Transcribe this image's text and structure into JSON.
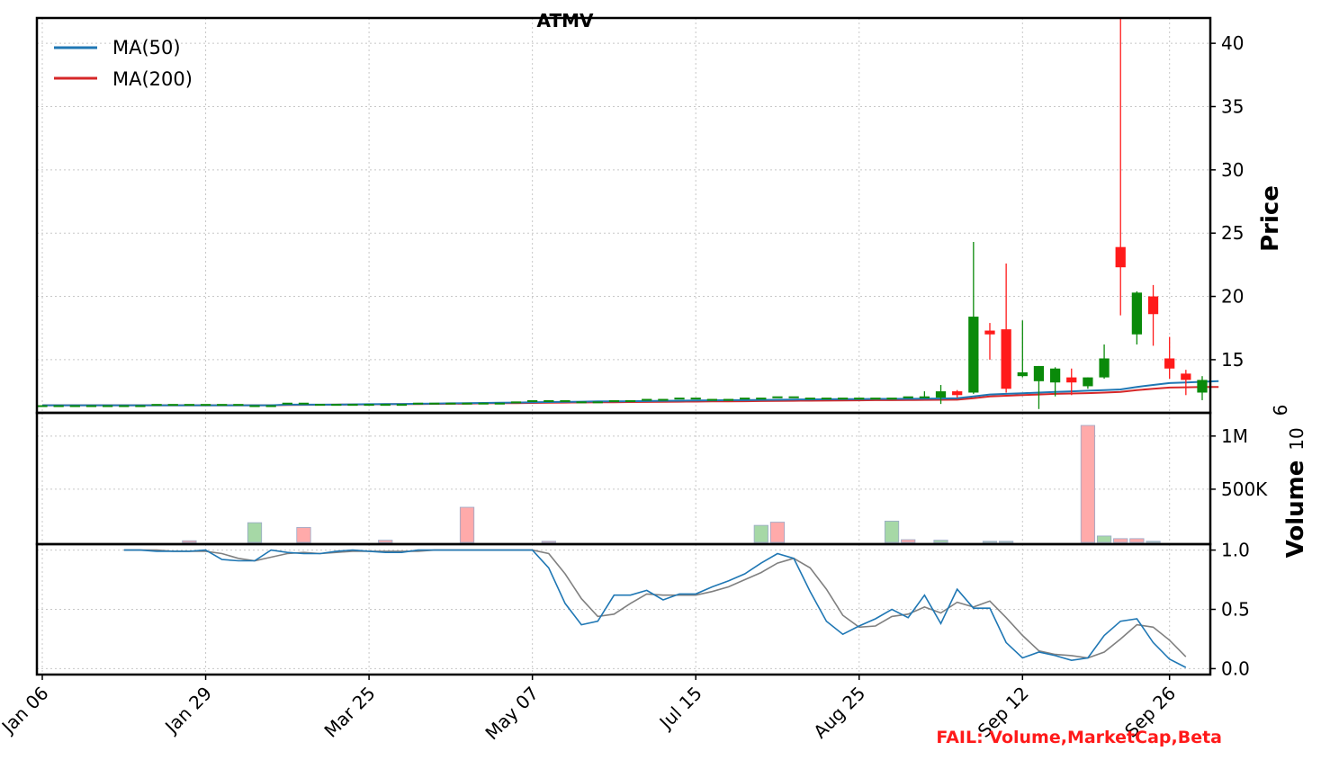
{
  "chart_data": {
    "type": "candlestick",
    "title": "ATMV",
    "status": {
      "text": "FAIL: Volume,MarketCap,Beta",
      "color": "#ff1a1a"
    },
    "colors": {
      "up": "#0a8a0a",
      "down": "#ff1a1a",
      "ma50": "#1f77b4",
      "ma200": "#d62728",
      "line1": "#1f77b4",
      "line2": "#808080",
      "vol_up": "#a6d8a6",
      "vol_down": "#ffaaaa",
      "grid": "#c8c8c8"
    },
    "x_tick_labels": [
      "Jan 06",
      "Jan 29",
      "Mar 25",
      "May 07",
      "Jul 15",
      "Aug 25",
      "Sep 12",
      "Sep 26"
    ],
    "legend": [
      {
        "label": "MA(50)",
        "color": "#1f77b4"
      },
      {
        "label": "MA(200)",
        "color": "#d62728"
      }
    ],
    "price_panel": {
      "ylabel": "Price",
      "ylim": [
        10.8,
        42
      ],
      "yticks": [
        15,
        20,
        25,
        30,
        35,
        40
      ],
      "candles": [
        {
          "o": 11.4,
          "h": 11.4,
          "l": 11.4,
          "c": 11.4
        },
        {
          "o": 11.4,
          "h": 11.4,
          "l": 11.4,
          "c": 11.4
        },
        {
          "o": 11.4,
          "h": 11.4,
          "l": 11.4,
          "c": 11.4
        },
        {
          "o": 11.4,
          "h": 11.4,
          "l": 11.4,
          "c": 11.4
        },
        {
          "o": 11.4,
          "h": 11.4,
          "l": 11.4,
          "c": 11.4
        },
        {
          "o": 11.4,
          "h": 11.4,
          "l": 11.4,
          "c": 11.4
        },
        {
          "o": 11.4,
          "h": 11.4,
          "l": 11.4,
          "c": 11.4
        },
        {
          "o": 11.5,
          "h": 11.5,
          "l": 11.5,
          "c": 11.5
        },
        {
          "o": 11.5,
          "h": 11.5,
          "l": 11.5,
          "c": 11.5
        },
        {
          "o": 11.5,
          "h": 11.5,
          "l": 11.5,
          "c": 11.5
        },
        {
          "o": 11.5,
          "h": 11.5,
          "l": 11.5,
          "c": 11.5
        },
        {
          "o": 11.5,
          "h": 11.5,
          "l": 11.5,
          "c": 11.5
        },
        {
          "o": 11.5,
          "h": 11.5,
          "l": 11.5,
          "c": 11.5
        },
        {
          "o": 11.4,
          "h": 11.4,
          "l": 11.4,
          "c": 11.4
        },
        {
          "o": 11.4,
          "h": 11.4,
          "l": 11.4,
          "c": 11.4
        },
        {
          "o": 11.6,
          "h": 11.6,
          "l": 11.6,
          "c": 11.6
        },
        {
          "o": 11.6,
          "h": 11.6,
          "l": 11.6,
          "c": 11.6
        },
        {
          "o": 11.5,
          "h": 11.5,
          "l": 11.5,
          "c": 11.5
        },
        {
          "o": 11.5,
          "h": 11.5,
          "l": 11.5,
          "c": 11.5
        },
        {
          "o": 11.5,
          "h": 11.5,
          "l": 11.5,
          "c": 11.5
        },
        {
          "o": 11.5,
          "h": 11.5,
          "l": 11.5,
          "c": 11.5
        },
        {
          "o": 11.5,
          "h": 11.5,
          "l": 11.5,
          "c": 11.5
        },
        {
          "o": 11.5,
          "h": 11.5,
          "l": 11.5,
          "c": 11.5
        },
        {
          "o": 11.6,
          "h": 11.6,
          "l": 11.6,
          "c": 11.6
        },
        {
          "o": 11.6,
          "h": 11.6,
          "l": 11.6,
          "c": 11.6
        },
        {
          "o": 11.6,
          "h": 11.6,
          "l": 11.6,
          "c": 11.6
        },
        {
          "o": 11.6,
          "h": 11.6,
          "l": 11.6,
          "c": 11.6
        },
        {
          "o": 11.6,
          "h": 11.6,
          "l": 11.6,
          "c": 11.6
        },
        {
          "o": 11.6,
          "h": 11.6,
          "l": 11.6,
          "c": 11.6
        },
        {
          "o": 11.7,
          "h": 11.7,
          "l": 11.7,
          "c": 11.7
        },
        {
          "o": 11.8,
          "h": 11.8,
          "l": 11.8,
          "c": 11.8
        },
        {
          "o": 11.8,
          "h": 11.8,
          "l": 11.8,
          "c": 11.8
        },
        {
          "o": 11.8,
          "h": 11.8,
          "l": 11.8,
          "c": 11.8
        },
        {
          "o": 11.7,
          "h": 11.7,
          "l": 11.7,
          "c": 11.7
        },
        {
          "o": 11.7,
          "h": 11.7,
          "l": 11.7,
          "c": 11.7
        },
        {
          "o": 11.8,
          "h": 11.8,
          "l": 11.8,
          "c": 11.8
        },
        {
          "o": 11.8,
          "h": 11.8,
          "l": 11.8,
          "c": 11.8
        },
        {
          "o": 11.9,
          "h": 11.9,
          "l": 11.9,
          "c": 11.9
        },
        {
          "o": 11.9,
          "h": 11.9,
          "l": 11.9,
          "c": 11.9
        },
        {
          "o": 12.0,
          "h": 12.0,
          "l": 12.0,
          "c": 12.0
        },
        {
          "o": 12.0,
          "h": 12.0,
          "l": 12.0,
          "c": 12.0
        },
        {
          "o": 11.9,
          "h": 11.9,
          "l": 11.9,
          "c": 11.9
        },
        {
          "o": 11.9,
          "h": 11.9,
          "l": 11.9,
          "c": 11.9
        },
        {
          "o": 12.0,
          "h": 12.0,
          "l": 12.0,
          "c": 12.0
        },
        {
          "o": 12.0,
          "h": 12.0,
          "l": 12.0,
          "c": 12.0
        },
        {
          "o": 12.1,
          "h": 12.1,
          "l": 12.1,
          "c": 12.1
        },
        {
          "o": 12.1,
          "h": 12.1,
          "l": 12.1,
          "c": 12.1
        },
        {
          "o": 12.0,
          "h": 12.0,
          "l": 12.0,
          "c": 12.0
        },
        {
          "o": 12.0,
          "h": 12.0,
          "l": 12.0,
          "c": 12.0
        },
        {
          "o": 12.0,
          "h": 12.0,
          "l": 12.0,
          "c": 12.0
        },
        {
          "o": 12.0,
          "h": 12.0,
          "l": 12.0,
          "c": 12.0
        },
        {
          "o": 12.0,
          "h": 12.0,
          "l": 12.0,
          "c": 12.0
        },
        {
          "o": 12.0,
          "h": 12.0,
          "l": 12.0,
          "c": 12.0
        },
        {
          "o": 12.1,
          "h": 12.1,
          "l": 12.1,
          "c": 12.1
        },
        {
          "o": 12.0,
          "h": 12.5,
          "l": 12.0,
          "c": 12.1
        },
        {
          "o": 12.0,
          "h": 13.0,
          "l": 11.5,
          "c": 12.5
        },
        {
          "o": 12.5,
          "h": 12.6,
          "l": 12.0,
          "c": 12.2
        },
        {
          "o": 12.4,
          "h": 24.3,
          "l": 12.3,
          "c": 18.4
        },
        {
          "o": 17.3,
          "h": 17.9,
          "l": 15.0,
          "c": 17.0
        },
        {
          "o": 17.4,
          "h": 22.6,
          "l": 12.4,
          "c": 12.7
        },
        {
          "o": 13.7,
          "h": 18.1,
          "l": 13.6,
          "c": 14.0
        },
        {
          "o": 13.3,
          "h": 14.5,
          "l": 11.1,
          "c": 14.5
        },
        {
          "o": 13.2,
          "h": 14.4,
          "l": 12.1,
          "c": 14.3
        },
        {
          "o": 13.6,
          "h": 14.3,
          "l": 12.2,
          "c": 13.2
        },
        {
          "o": 12.9,
          "h": 13.6,
          "l": 12.7,
          "c": 13.6
        },
        {
          "o": 13.6,
          "h": 16.2,
          "l": 13.5,
          "c": 15.1
        },
        {
          "o": 23.9,
          "h": 42.0,
          "l": 18.5,
          "c": 22.3
        },
        {
          "o": 17.0,
          "h": 20.4,
          "l": 16.2,
          "c": 20.3
        },
        {
          "o": 20.0,
          "h": 20.9,
          "l": 16.1,
          "c": 18.6
        },
        {
          "o": 15.1,
          "h": 16.8,
          "l": 13.5,
          "c": 14.3
        },
        {
          "o": 13.9,
          "h": 14.2,
          "l": 12.2,
          "c": 13.4
        },
        {
          "o": 12.4,
          "h": 13.7,
          "l": 11.8,
          "c": 13.4
        }
      ],
      "ma50": [
        11.4,
        11.4,
        11.4,
        11.4,
        11.4,
        11.4,
        11.4,
        11.4,
        11.4,
        11.4,
        11.4,
        11.4,
        11.4,
        11.4,
        11.4,
        11.45,
        11.45,
        11.45,
        11.45,
        11.47,
        11.48,
        11.5,
        11.5,
        11.52,
        11.53,
        11.55,
        11.56,
        11.58,
        11.6,
        11.61,
        11.63,
        11.65,
        11.67,
        11.68,
        11.7,
        11.7,
        11.72,
        11.73,
        11.75,
        11.76,
        11.78,
        11.79,
        11.8,
        11.8,
        11.82,
        11.83,
        11.85,
        11.86,
        11.87,
        11.88,
        11.89,
        11.9,
        11.9,
        11.91,
        11.92,
        11.93,
        11.95,
        12.1,
        12.25,
        12.3,
        12.35,
        12.4,
        12.45,
        12.5,
        12.55,
        12.6,
        12.65,
        12.85,
        13.0,
        13.15,
        13.2,
        13.25,
        13.3
      ],
      "ma200": [
        11.4,
        11.4,
        11.4,
        11.4,
        11.4,
        11.4,
        11.4,
        11.4,
        11.4,
        11.4,
        11.4,
        11.4,
        11.4,
        11.4,
        11.4,
        11.42,
        11.43,
        11.44,
        11.45,
        11.46,
        11.47,
        11.48,
        11.49,
        11.5,
        11.51,
        11.52,
        11.53,
        11.55,
        11.56,
        11.57,
        11.58,
        11.6,
        11.61,
        11.62,
        11.63,
        11.64,
        11.65,
        11.66,
        11.67,
        11.68,
        11.69,
        11.7,
        11.71,
        11.72,
        11.73,
        11.74,
        11.75,
        11.76,
        11.77,
        11.78,
        11.79,
        11.8,
        11.8,
        11.81,
        11.82,
        11.83,
        11.84,
        11.95,
        12.1,
        12.15,
        12.2,
        12.25,
        12.3,
        12.33,
        12.36,
        12.4,
        12.45,
        12.6,
        12.7,
        12.8,
        12.82,
        12.84,
        12.85
      ]
    },
    "volume_panel": {
      "ylabel": "Volume",
      "multiplier": "10",
      "multiplier_exp": "6",
      "ytick_labels": [
        "500K",
        "1M"
      ],
      "yticks": [
        500000,
        1000000
      ],
      "ylim": [
        0,
        1100000
      ],
      "bars": [
        {
          "i": 9,
          "v": 15000,
          "up": false
        },
        {
          "i": 13,
          "v": 185000,
          "up": true
        },
        {
          "i": 16,
          "v": 140000,
          "up": false
        },
        {
          "i": 21,
          "v": 20000,
          "up": false
        },
        {
          "i": 26,
          "v": 330000,
          "up": false
        },
        {
          "i": 31,
          "v": 10000,
          "up": false
        },
        {
          "i": 44,
          "v": 160000,
          "up": true
        },
        {
          "i": 45,
          "v": 190000,
          "up": false
        },
        {
          "i": 52,
          "v": 200000,
          "up": true
        },
        {
          "i": 53,
          "v": 25000,
          "up": false
        },
        {
          "i": 55,
          "v": 20000,
          "up": true
        },
        {
          "i": 58,
          "v": 10000,
          "up": true
        },
        {
          "i": 59,
          "v": 10000,
          "up": true
        },
        {
          "i": 64,
          "v": 1100000,
          "up": false
        },
        {
          "i": 65,
          "v": 60000,
          "up": true
        },
        {
          "i": 66,
          "v": 35000,
          "up": false
        },
        {
          "i": 67,
          "v": 35000,
          "up": false
        },
        {
          "i": 68,
          "v": 10000,
          "up": true
        }
      ]
    },
    "indicator_panel": {
      "ylim": [
        -0.05,
        1.05
      ],
      "yticks": [
        0.0,
        0.5,
        1.0
      ],
      "ytick_labels": [
        "0.0",
        "0.5",
        "1.0"
      ],
      "start_index": 5,
      "line1": [
        1.0,
        1.0,
        0.99,
        0.99,
        0.99,
        1.0,
        0.92,
        0.91,
        0.91,
        1.0,
        0.98,
        0.97,
        0.97,
        0.99,
        1.0,
        0.99,
        0.98,
        0.98,
        1.0,
        1.0,
        1.0,
        1.0,
        1.0,
        1.0,
        1.0,
        1.0,
        0.85,
        0.55,
        0.37,
        0.4,
        0.62,
        0.62,
        0.66,
        0.58,
        0.63,
        0.63,
        0.69,
        0.74,
        0.8,
        0.89,
        0.97,
        0.93,
        0.65,
        0.4,
        0.29,
        0.36,
        0.42,
        0.5,
        0.43,
        0.62,
        0.38,
        0.67,
        0.51,
        0.51,
        0.22,
        0.09,
        0.14,
        0.11,
        0.07,
        0.09,
        0.28,
        0.4,
        0.42,
        0.22,
        0.08,
        0.01
      ],
      "line2": [
        1.0,
        1.0,
        1.0,
        0.99,
        0.99,
        0.99,
        0.97,
        0.93,
        0.91,
        0.94,
        0.97,
        0.98,
        0.97,
        0.98,
        0.99,
        0.99,
        0.99,
        0.99,
        0.99,
        1.0,
        1.0,
        1.0,
        1.0,
        1.0,
        1.0,
        1.0,
        0.97,
        0.8,
        0.59,
        0.44,
        0.46,
        0.55,
        0.63,
        0.62,
        0.62,
        0.62,
        0.65,
        0.69,
        0.75,
        0.81,
        0.89,
        0.93,
        0.85,
        0.67,
        0.45,
        0.35,
        0.36,
        0.44,
        0.46,
        0.52,
        0.47,
        0.56,
        0.52,
        0.57,
        0.43,
        0.28,
        0.15,
        0.12,
        0.11,
        0.09,
        0.14,
        0.25,
        0.37,
        0.35,
        0.24,
        0.1
      ]
    }
  }
}
